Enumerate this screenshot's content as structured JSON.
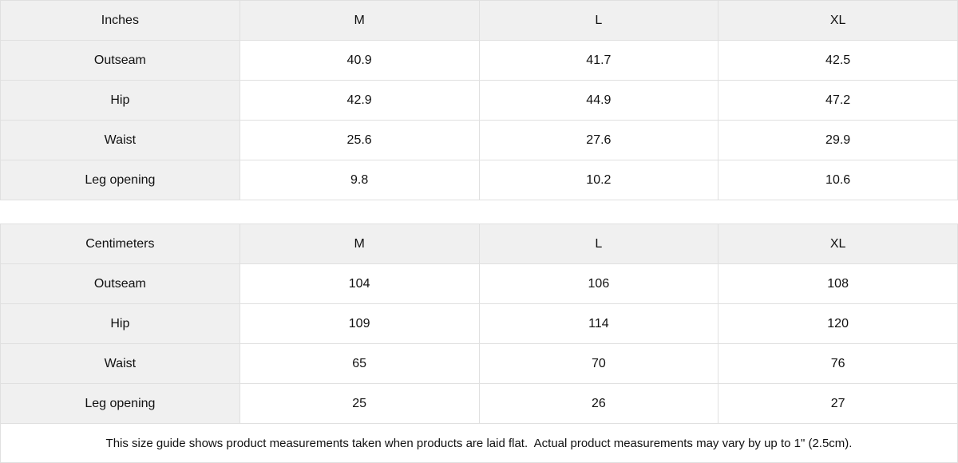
{
  "colors": {
    "header_bg": "#f0f0f0",
    "cell_bg": "#ffffff",
    "border": "#e0e0e0",
    "text": "#111111"
  },
  "tables": [
    {
      "unit_label": "Inches",
      "columns": [
        "M",
        "L",
        "XL"
      ],
      "rows": [
        {
          "label": "Outseam",
          "values": [
            "40.9",
            "41.7",
            "42.5"
          ]
        },
        {
          "label": "Hip",
          "values": [
            "42.9",
            "44.9",
            "47.2"
          ]
        },
        {
          "label": "Waist",
          "values": [
            "25.6",
            "27.6",
            "29.9"
          ]
        },
        {
          "label": "Leg opening",
          "values": [
            "9.8",
            "10.2",
            "10.6"
          ]
        }
      ]
    },
    {
      "unit_label": "Centimeters",
      "columns": [
        "M",
        "L",
        "XL"
      ],
      "rows": [
        {
          "label": "Outseam",
          "values": [
            "104",
            "106",
            "108"
          ]
        },
        {
          "label": "Hip",
          "values": [
            "109",
            "114",
            "120"
          ]
        },
        {
          "label": "Waist",
          "values": [
            "65",
            "70",
            "76"
          ]
        },
        {
          "label": "Leg opening",
          "values": [
            "25",
            "26",
            "27"
          ]
        }
      ]
    }
  ],
  "footer": {
    "note": "This size guide shows product measurements taken when products are laid flat.  Actual product measurements may vary by up to 1\" (2.5cm)."
  }
}
